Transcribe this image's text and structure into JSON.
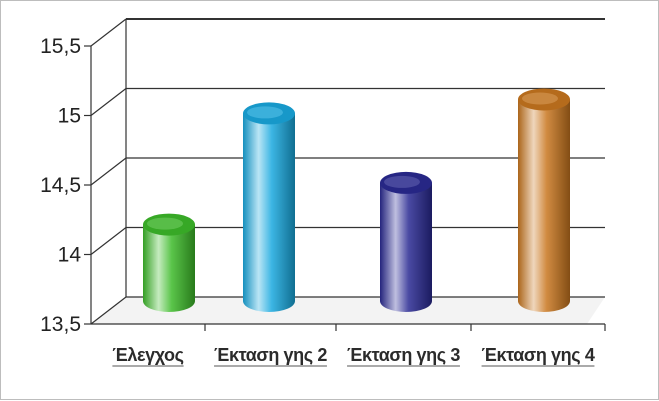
{
  "chart_data": {
    "type": "bar",
    "style": "3d-cylinder",
    "categories": [
      "Έλεγχος",
      "Έκταση γης 2",
      "Έκταση γης 3",
      "Έκταση γης 4"
    ],
    "values": [
      14.1,
      14.9,
      14.4,
      15.0
    ],
    "colors": [
      "#3dbb2a",
      "#19a9df",
      "#2a2a93",
      "#c9771f"
    ],
    "yticks": [
      "13,5",
      "14",
      "14,5",
      "15",
      "15,5"
    ],
    "ylim": [
      13.5,
      15.5
    ],
    "grid": true,
    "legend": "none",
    "title": "",
    "xlabel": "",
    "ylabel": ""
  }
}
